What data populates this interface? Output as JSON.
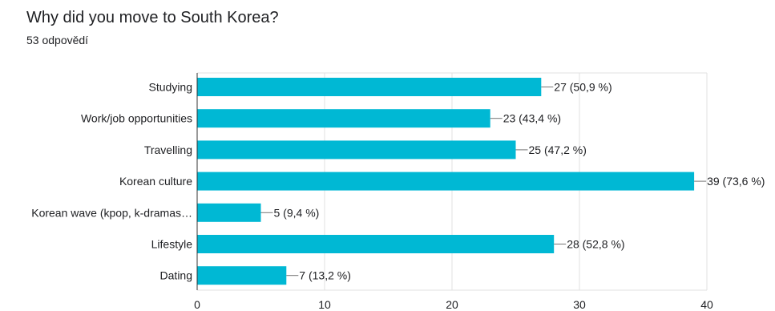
{
  "header": {
    "title": "Why did you move to South Korea?",
    "response_count": "53 odpovědí"
  },
  "chart_data": {
    "type": "bar",
    "orientation": "horizontal",
    "title": "Why did you move to South Korea?",
    "categories": [
      "Studying",
      "Work/job opportunities",
      "Travelling",
      "Korean culture",
      "Korean wave (kpop, k-dramas…",
      "Lifestyle",
      "Dating"
    ],
    "values": [
      27,
      23,
      25,
      39,
      5,
      28,
      7
    ],
    "data_labels": [
      "27 (50,9 %)",
      "23 (43,4 %)",
      "25 (47,2 %)",
      "39 (73,6 %)",
      "5 (9,4 %)",
      "28 (52,8 %)",
      "7 (13,2 %)"
    ],
    "xlim": [
      0,
      40
    ],
    "xticks": [
      0,
      10,
      20,
      30,
      40
    ],
    "grid": true,
    "bar_color": "#00b8d4",
    "grid_color": "#e0e0e0",
    "axis_color": "#333333"
  }
}
